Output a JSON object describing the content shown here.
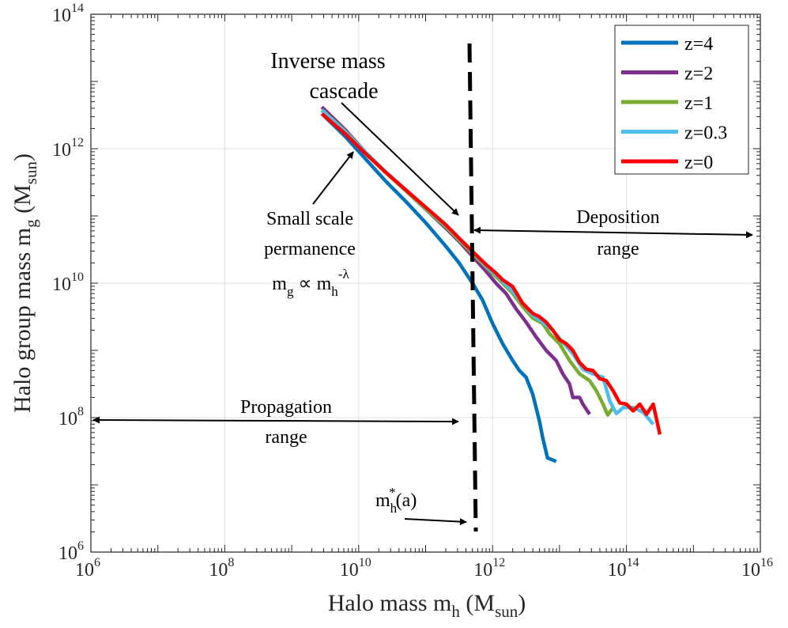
{
  "chart_data": {
    "type": "line",
    "x_scale": "log",
    "y_scale": "log",
    "xlabel": {
      "main": "Halo mass m",
      "sub": "h",
      "unit_open": " (M",
      "unit_sub": "sun",
      "unit_close": ")"
    },
    "ylabel": {
      "main": "Halo group mass m",
      "sub": "g",
      "unit_open": " (M",
      "unit_sub": "sun",
      "unit_close": ")"
    },
    "xlim_exp": [
      6,
      16
    ],
    "ylim_exp": [
      6,
      14
    ],
    "x_ticks": [
      {
        "exp": 6,
        "base": "10",
        "sup": "6"
      },
      {
        "exp": 8,
        "base": "10",
        "sup": "8"
      },
      {
        "exp": 10,
        "base": "10",
        "sup": "10"
      },
      {
        "exp": 12,
        "base": "10",
        "sup": "12"
      },
      {
        "exp": 14,
        "base": "10",
        "sup": "14"
      },
      {
        "exp": 16,
        "base": "10",
        "sup": "16"
      }
    ],
    "y_ticks": [
      {
        "exp": 6,
        "base": "10",
        "sup": "6"
      },
      {
        "exp": 8,
        "base": "10",
        "sup": "8"
      },
      {
        "exp": 10,
        "base": "10",
        "sup": "10"
      },
      {
        "exp": 12,
        "base": "10",
        "sup": "12"
      },
      {
        "exp": 14,
        "base": "10",
        "sup": "14"
      }
    ],
    "legend_position": "top-right",
    "series": [
      {
        "name": "z=4",
        "color": "#0072bd",
        "points": [
          [
            9.45,
            12.52
          ],
          [
            9.8,
            12.18
          ],
          [
            10.1,
            11.85
          ],
          [
            10.4,
            11.52
          ],
          [
            10.7,
            11.22
          ],
          [
            11.0,
            10.9
          ],
          [
            11.3,
            10.55
          ],
          [
            11.5,
            10.3
          ],
          [
            11.7,
            10.0
          ],
          [
            11.85,
            9.75
          ],
          [
            12.0,
            9.4
          ],
          [
            12.15,
            9.1
          ],
          [
            12.3,
            8.85
          ],
          [
            12.4,
            8.7
          ],
          [
            12.5,
            8.6
          ],
          [
            12.6,
            8.35
          ],
          [
            12.7,
            7.95
          ],
          [
            12.75,
            7.7
          ],
          [
            12.82,
            7.4
          ],
          [
            12.95,
            7.35
          ]
        ]
      },
      {
        "name": "z=2",
        "color": "#7e2f8e",
        "points": [
          [
            9.45,
            12.62
          ],
          [
            9.8,
            12.28
          ],
          [
            10.1,
            11.95
          ],
          [
            10.4,
            11.65
          ],
          [
            10.7,
            11.38
          ],
          [
            11.0,
            11.1
          ],
          [
            11.3,
            10.82
          ],
          [
            11.5,
            10.62
          ],
          [
            11.7,
            10.4
          ],
          [
            11.9,
            10.18
          ],
          [
            12.05,
            10.0
          ],
          [
            12.2,
            9.85
          ],
          [
            12.35,
            9.62
          ],
          [
            12.5,
            9.42
          ],
          [
            12.65,
            9.2
          ],
          [
            12.8,
            9.0
          ],
          [
            12.95,
            8.85
          ],
          [
            13.05,
            8.65
          ],
          [
            13.15,
            8.5
          ],
          [
            13.2,
            8.3
          ],
          [
            13.3,
            8.3
          ],
          [
            13.35,
            8.2
          ],
          [
            13.45,
            8.05
          ]
        ]
      },
      {
        "name": "z=1",
        "color": "#77ac30",
        "points": [
          [
            9.45,
            12.58
          ],
          [
            9.8,
            12.26
          ],
          [
            10.1,
            11.95
          ],
          [
            10.4,
            11.65
          ],
          [
            10.7,
            11.38
          ],
          [
            11.0,
            11.1
          ],
          [
            11.3,
            10.84
          ],
          [
            11.5,
            10.64
          ],
          [
            11.7,
            10.44
          ],
          [
            11.9,
            10.24
          ],
          [
            12.1,
            10.05
          ],
          [
            12.3,
            9.85
          ],
          [
            12.45,
            9.65
          ],
          [
            12.6,
            9.48
          ],
          [
            12.75,
            9.4
          ],
          [
            12.85,
            9.25
          ],
          [
            13.0,
            9.1
          ],
          [
            13.15,
            8.85
          ],
          [
            13.3,
            8.65
          ],
          [
            13.45,
            8.55
          ],
          [
            13.55,
            8.4
          ],
          [
            13.65,
            8.2
          ],
          [
            13.72,
            8.04
          ],
          [
            13.8,
            8.15
          ]
        ]
      },
      {
        "name": "z=0.3",
        "color": "#4dbeee",
        "points": [
          [
            9.45,
            12.57
          ],
          [
            9.8,
            12.25
          ],
          [
            10.1,
            11.95
          ],
          [
            10.4,
            11.66
          ],
          [
            10.7,
            11.39
          ],
          [
            11.0,
            11.12
          ],
          [
            11.3,
            10.86
          ],
          [
            11.5,
            10.66
          ],
          [
            11.7,
            10.46
          ],
          [
            11.9,
            10.26
          ],
          [
            12.1,
            10.08
          ],
          [
            12.3,
            9.88
          ],
          [
            12.45,
            9.7
          ],
          [
            12.6,
            9.52
          ],
          [
            12.75,
            9.42
          ],
          [
            12.9,
            9.3
          ],
          [
            13.05,
            9.12
          ],
          [
            13.2,
            8.95
          ],
          [
            13.35,
            8.72
          ],
          [
            13.5,
            8.65
          ],
          [
            13.65,
            8.6
          ],
          [
            13.75,
            8.25
          ],
          [
            13.85,
            8.06
          ],
          [
            13.95,
            8.15
          ],
          [
            14.1,
            8.15
          ],
          [
            14.25,
            8.08
          ],
          [
            14.4,
            7.9
          ]
        ]
      },
      {
        "name": "z=0",
        "color": "#ff0000",
        "points": [
          [
            9.45,
            12.52
          ],
          [
            9.8,
            12.22
          ],
          [
            10.1,
            11.93
          ],
          [
            10.4,
            11.65
          ],
          [
            10.7,
            11.39
          ],
          [
            11.0,
            11.13
          ],
          [
            11.3,
            10.87
          ],
          [
            11.5,
            10.67
          ],
          [
            11.7,
            10.47
          ],
          [
            11.9,
            10.28
          ],
          [
            12.05,
            10.15
          ],
          [
            12.15,
            10.05
          ],
          [
            12.3,
            9.95
          ],
          [
            12.45,
            9.7
          ],
          [
            12.6,
            9.55
          ],
          [
            12.7,
            9.5
          ],
          [
            12.8,
            9.42
          ],
          [
            12.9,
            9.3
          ],
          [
            13.0,
            9.16
          ],
          [
            13.1,
            9.1
          ],
          [
            13.2,
            9.0
          ],
          [
            13.3,
            8.82
          ],
          [
            13.4,
            8.72
          ],
          [
            13.5,
            8.7
          ],
          [
            13.6,
            8.58
          ],
          [
            13.7,
            8.55
          ],
          [
            13.8,
            8.4
          ],
          [
            13.9,
            8.22
          ],
          [
            14.0,
            8.2
          ],
          [
            14.1,
            8.1
          ],
          [
            14.2,
            8.2
          ],
          [
            14.3,
            8.05
          ],
          [
            14.4,
            8.2
          ],
          [
            14.5,
            7.75
          ]
        ]
      }
    ],
    "vline": {
      "x_exp": 11.75,
      "label_main": "m",
      "label_sub": "h",
      "label_sup": "*",
      "label_tail": "(a)"
    },
    "annotations": {
      "inverse_mass": {
        "line1": "Inverse mass",
        "line2": "cascade"
      },
      "small_scale": {
        "line1": "Small scale",
        "line2": "permanence",
        "rel_lhs_main": "m",
        "rel_lhs_sub": "g",
        "rel_symbol": " ∝ ",
        "rel_rhs_main": "m",
        "rel_rhs_sub": "h",
        "rel_rhs_sup": "-λ"
      },
      "deposition": {
        "line1": "Deposition",
        "line2": "range"
      },
      "propagation": {
        "line1": "Propagation",
        "line2": "range"
      }
    }
  }
}
